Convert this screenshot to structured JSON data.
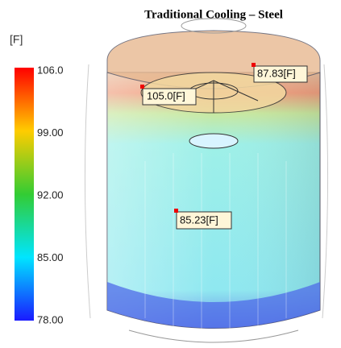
{
  "title": "Traditional Cooling – Steel",
  "legend": {
    "unit": "[F]",
    "ticks": [
      "106.0",
      "99.00",
      "92.00",
      "85.00",
      "78.00"
    ]
  },
  "annotations": [
    "105.0[F]",
    "87.83[F]",
    "85.23[F]"
  ]
}
